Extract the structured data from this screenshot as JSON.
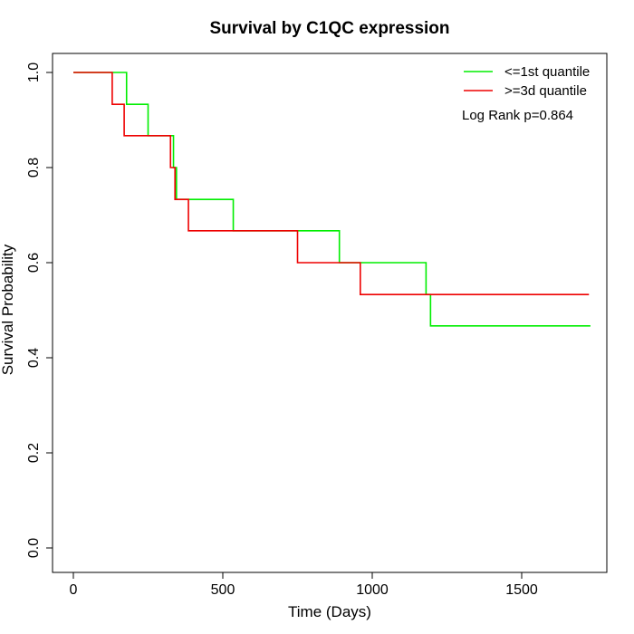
{
  "chart_data": {
    "type": "line",
    "title": "Survival by C1QC expression",
    "xlabel": "Time (Days)",
    "ylabel": "Survival Probability",
    "xlim": [
      0,
      1730
    ],
    "ylim": [
      0,
      1
    ],
    "xticks": [
      0,
      500,
      1000,
      1500
    ],
    "yticks": [
      0.0,
      0.2,
      0.4,
      0.6,
      0.8,
      1.0
    ],
    "xtick_labels": [
      "0",
      "500",
      "1000",
      "1500"
    ],
    "ytick_labels": [
      "0.0",
      "0.2",
      "0.4",
      "0.6",
      "0.8",
      "1.0"
    ],
    "grid": false,
    "legend_position": "top-right",
    "annotation": "Log Rank p=0.864",
    "series": [
      {
        "name": "<=1st quantile",
        "color": "#00ee00",
        "step": true,
        "x": [
          0,
          178,
          250,
          335,
          345,
          535,
          890,
          1180,
          1195,
          1730
        ],
        "y": [
          1.0,
          0.933,
          0.867,
          0.8,
          0.733,
          0.667,
          0.6,
          0.533,
          0.467,
          0.467
        ]
      },
      {
        "name": ">=3d quantile",
        "color": "#ee0000",
        "step": true,
        "x": [
          0,
          130,
          170,
          325,
          340,
          385,
          750,
          960,
          1725
        ],
        "y": [
          1.0,
          0.933,
          0.867,
          0.8,
          0.733,
          0.667,
          0.6,
          0.533,
          0.533
        ]
      }
    ]
  }
}
